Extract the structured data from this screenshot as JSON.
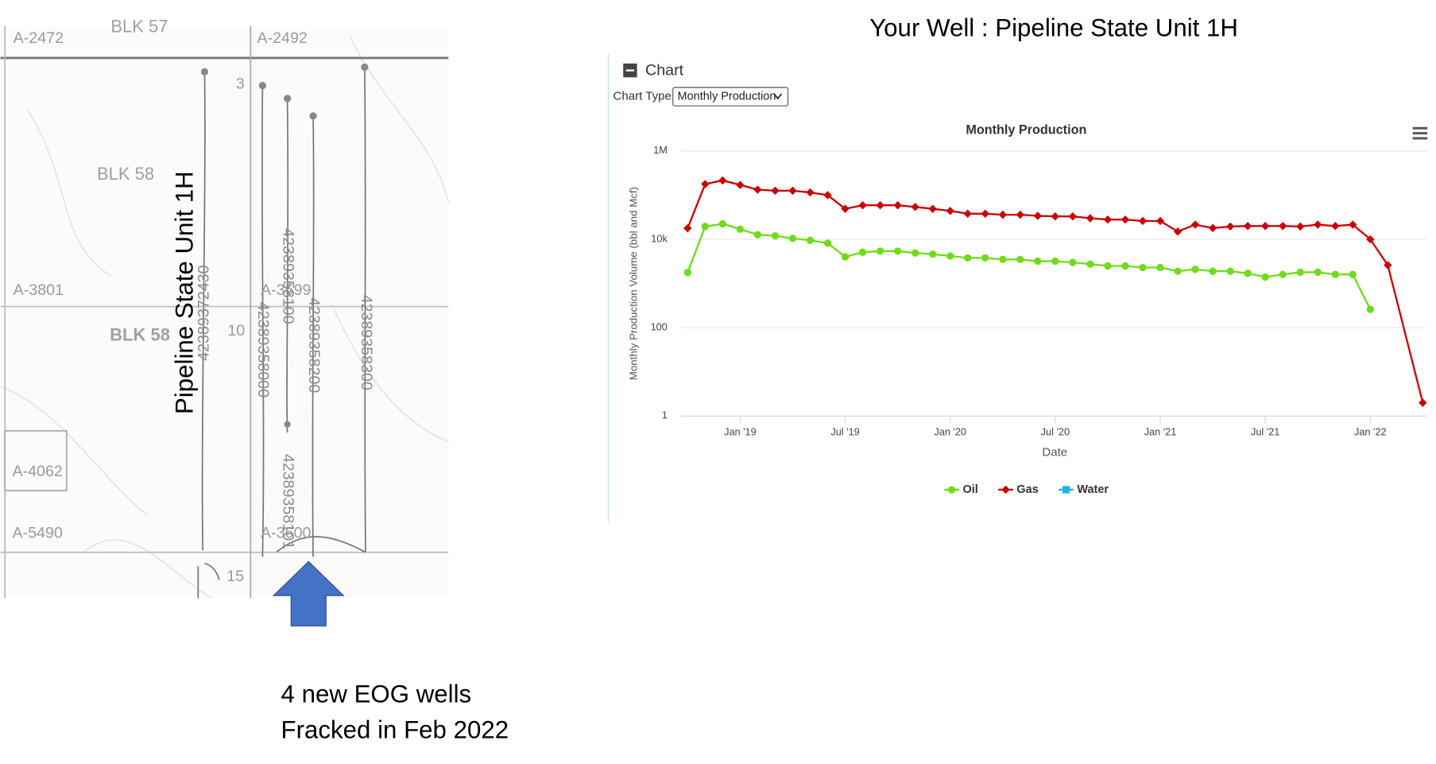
{
  "header": {
    "title": "Your Well : Pipeline State Unit 1H"
  },
  "map": {
    "labels": [
      "A-2472",
      "BLK 57",
      "A-2492",
      "3",
      "BLK 58",
      "A-3801",
      "A-3599",
      "BLK 58",
      "10",
      "A-4062",
      "A-5490",
      "A-3600",
      "15"
    ],
    "wells": [
      "42389372430",
      "42389358000",
      "42389358100",
      "42389358200",
      "42389358300",
      "42389358101"
    ],
    "well_name": "Pipeline State Unit 1H"
  },
  "annotation": [
    "4 new EOG wells",
    "Fracked in Feb 2022"
  ],
  "panel": {
    "heading": "Chart",
    "chart_type_label": "Chart Type:",
    "chart_type": "Monthly Production"
  },
  "chart_data": {
    "type": "line",
    "title": "Monthly Production",
    "x_label": "Date",
    "y_label": "Monthly Production Volume (bbl and Mcf)",
    "y_log": true,
    "x": [
      "2018-10",
      "2018-11",
      "2018-12",
      "2019-01",
      "2019-02",
      "2019-03",
      "2019-04",
      "2019-05",
      "2019-06",
      "2019-07",
      "2019-08",
      "2019-09",
      "2019-10",
      "2019-11",
      "2019-12",
      "2020-01",
      "2020-02",
      "2020-03",
      "2020-04",
      "2020-05",
      "2020-06",
      "2020-07",
      "2020-08",
      "2020-09",
      "2020-10",
      "2020-11",
      "2020-12",
      "2021-01",
      "2021-02",
      "2021-03",
      "2021-04",
      "2021-05",
      "2021-06",
      "2021-07",
      "2021-08",
      "2021-09",
      "2021-10",
      "2021-11",
      "2021-12",
      "2022-01",
      "2022-02",
      "2022-04"
    ],
    "xlim": [
      "2018-09",
      "2022-04"
    ],
    "xticks": [
      {
        "value": "2019-01",
        "label": "Jan '19"
      },
      {
        "value": "2019-07",
        "label": "Jul '19"
      },
      {
        "value": "2020-01",
        "label": "Jan '20"
      },
      {
        "value": "2020-07",
        "label": "Jul '20"
      },
      {
        "value": "2021-01",
        "label": "Jan '21"
      },
      {
        "value": "2021-07",
        "label": "Jul '21"
      },
      {
        "value": "2022-01",
        "label": "Jan '22"
      }
    ],
    "ylim": [
      1,
      1000000
    ],
    "yticks": [
      {
        "value": 1000000,
        "label": "1M"
      },
      {
        "value": 10000,
        "label": "10k"
      },
      100,
      1
    ],
    "grid": true,
    "legend": "bottom",
    "series": [
      {
        "name": "Oil",
        "color": "#6fdc1a",
        "marker": "circle",
        "values": [
          1780,
          19500,
          22500,
          17000,
          12700,
          12000,
          10500,
          9500,
          8200,
          4000,
          5100,
          5400,
          5400,
          4900,
          4600,
          4200,
          3800,
          3800,
          3500,
          3500,
          3200,
          3200,
          3000,
          2750,
          2500,
          2500,
          2300,
          2300,
          1900,
          2100,
          1900,
          1900,
          1700,
          1400,
          1600,
          1800,
          1800,
          1600,
          1600,
          260,
          null,
          null
        ]
      },
      {
        "name": "Gas",
        "color": "#cc0000",
        "marker": "diamond",
        "values": [
          17800,
          178000,
          215000,
          170000,
          133000,
          126000,
          126000,
          115000,
          100000,
          49000,
          59000,
          59000,
          59000,
          54000,
          49000,
          44000,
          38000,
          38000,
          36000,
          36000,
          34000,
          33000,
          33000,
          30000,
          28000,
          28000,
          26000,
          26000,
          15000,
          21500,
          18000,
          19500,
          20000,
          20000,
          20000,
          19500,
          21500,
          20000,
          21500,
          10000,
          2600,
          2
        ]
      },
      {
        "name": "Water",
        "color": "#1ab4e6",
        "marker": "square",
        "values": [
          null,
          null,
          null,
          null,
          null,
          null,
          null,
          null,
          null,
          null,
          null,
          null,
          null,
          null,
          null,
          null,
          null,
          null,
          null,
          null,
          null,
          null,
          null,
          null,
          null,
          null,
          null,
          null,
          null,
          null,
          null,
          null,
          null,
          null,
          null,
          null,
          null,
          null,
          null,
          null,
          null,
          null
        ]
      }
    ]
  }
}
